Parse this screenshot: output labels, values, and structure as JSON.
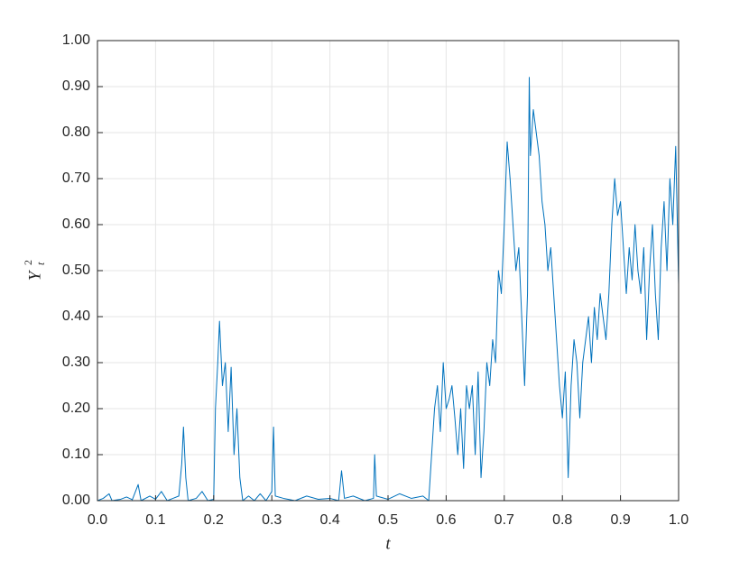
{
  "chart_data": {
    "type": "line",
    "xlabel": "t",
    "ylabel": "Y",
    "ylabel_sub": "t",
    "ylabel_sup": "2",
    "x": [
      0,
      0.01,
      0.02,
      0.025,
      0.04,
      0.05,
      0.06,
      0.07,
      0.075,
      0.09,
      0.1,
      0.11,
      0.12,
      0.13,
      0.14,
      0.145,
      0.148,
      0.152,
      0.156,
      0.17,
      0.18,
      0.19,
      0.2,
      0.203,
      0.207,
      0.21,
      0.215,
      0.22,
      0.225,
      0.23,
      0.235,
      0.24,
      0.245,
      0.25,
      0.26,
      0.27,
      0.28,
      0.29,
      0.3,
      0.303,
      0.306,
      0.32,
      0.34,
      0.36,
      0.38,
      0.4,
      0.415,
      0.42,
      0.425,
      0.44,
      0.46,
      0.475,
      0.477,
      0.48,
      0.5,
      0.52,
      0.54,
      0.56,
      0.57,
      0.575,
      0.58,
      0.585,
      0.59,
      0.595,
      0.6,
      0.605,
      0.61,
      0.615,
      0.62,
      0.625,
      0.63,
      0.635,
      0.64,
      0.645,
      0.65,
      0.655,
      0.66,
      0.665,
      0.67,
      0.675,
      0.68,
      0.685,
      0.69,
      0.695,
      0.7,
      0.705,
      0.71,
      0.715,
      0.72,
      0.725,
      0.73,
      0.735,
      0.74,
      0.743,
      0.745,
      0.75,
      0.755,
      0.76,
      0.765,
      0.77,
      0.775,
      0.78,
      0.785,
      0.79,
      0.795,
      0.8,
      0.805,
      0.81,
      0.815,
      0.82,
      0.825,
      0.83,
      0.835,
      0.84,
      0.845,
      0.85,
      0.855,
      0.86,
      0.865,
      0.87,
      0.875,
      0.88,
      0.885,
      0.89,
      0.895,
      0.9,
      0.905,
      0.91,
      0.915,
      0.92,
      0.925,
      0.93,
      0.935,
      0.94,
      0.945,
      0.95,
      0.955,
      0.96,
      0.965,
      0.97,
      0.975,
      0.98,
      0.985,
      0.99,
      0.995,
      1.0
    ],
    "series": [
      {
        "color": "#0072BD",
        "values": [
          0,
          0.005,
          0.015,
          0,
          0.003,
          0.008,
          0.002,
          0.035,
          0,
          0.01,
          0.003,
          0.02,
          0,
          0.005,
          0.01,
          0.08,
          0.16,
          0.05,
          0,
          0.005,
          0.02,
          0,
          0.003,
          0.2,
          0.3,
          0.39,
          0.25,
          0.3,
          0.15,
          0.29,
          0.1,
          0.2,
          0.05,
          0,
          0.01,
          0,
          0.015,
          0,
          0.02,
          0.16,
          0.01,
          0.005,
          0,
          0.01,
          0.003,
          0.005,
          0,
          0.065,
          0.005,
          0.01,
          0,
          0.005,
          0.1,
          0.01,
          0.003,
          0.015,
          0.005,
          0.01,
          0,
          0.1,
          0.2,
          0.25,
          0.15,
          0.3,
          0.2,
          0.22,
          0.25,
          0.18,
          0.1,
          0.2,
          0.07,
          0.25,
          0.2,
          0.25,
          0.1,
          0.28,
          0.05,
          0.15,
          0.3,
          0.25,
          0.35,
          0.3,
          0.5,
          0.45,
          0.6,
          0.78,
          0.7,
          0.6,
          0.5,
          0.55,
          0.4,
          0.25,
          0.45,
          0.92,
          0.75,
          0.85,
          0.8,
          0.75,
          0.65,
          0.6,
          0.5,
          0.55,
          0.45,
          0.35,
          0.25,
          0.18,
          0.28,
          0.05,
          0.25,
          0.35,
          0.3,
          0.18,
          0.3,
          0.35,
          0.4,
          0.3,
          0.42,
          0.35,
          0.45,
          0.4,
          0.35,
          0.45,
          0.6,
          0.7,
          0.62,
          0.65,
          0.55,
          0.45,
          0.55,
          0.48,
          0.6,
          0.5,
          0.45,
          0.55,
          0.35,
          0.5,
          0.6,
          0.45,
          0.35,
          0.55,
          0.65,
          0.5,
          0.7,
          0.6,
          0.77,
          0.47
        ]
      }
    ],
    "xlim": [
      0,
      1
    ],
    "xticks": [
      {
        "value": 0,
        "label": "0.0"
      },
      {
        "value": 0.1,
        "label": "0.1"
      },
      {
        "value": 0.2,
        "label": "0.2"
      },
      {
        "value": 0.3,
        "label": "0.3"
      },
      {
        "value": 0.4,
        "label": "0.4"
      },
      {
        "value": 0.5,
        "label": "0.5"
      },
      {
        "value": 0.6,
        "label": "0.6"
      },
      {
        "value": 0.7,
        "label": "0.7"
      },
      {
        "value": 0.8,
        "label": "0.8"
      },
      {
        "value": 0.9,
        "label": "0.9"
      },
      {
        "value": 1,
        "label": "1.0"
      }
    ],
    "ylim": [
      0,
      1
    ],
    "yticks": [
      {
        "value": 0,
        "label": "0.00"
      },
      {
        "value": 0.1,
        "label": "0.10"
      },
      {
        "value": 0.2,
        "label": "0.20"
      },
      {
        "value": 0.3,
        "label": "0.30"
      },
      {
        "value": 0.4,
        "label": "0.40"
      },
      {
        "value": 0.5,
        "label": "0.50"
      },
      {
        "value": 0.6,
        "label": "0.60"
      },
      {
        "value": 0.7,
        "label": "0.70"
      },
      {
        "value": 0.8,
        "label": "0.80"
      },
      {
        "value": 0.9,
        "label": "0.90"
      },
      {
        "value": 1,
        "label": "1.00"
      }
    ],
    "grid": true
  }
}
